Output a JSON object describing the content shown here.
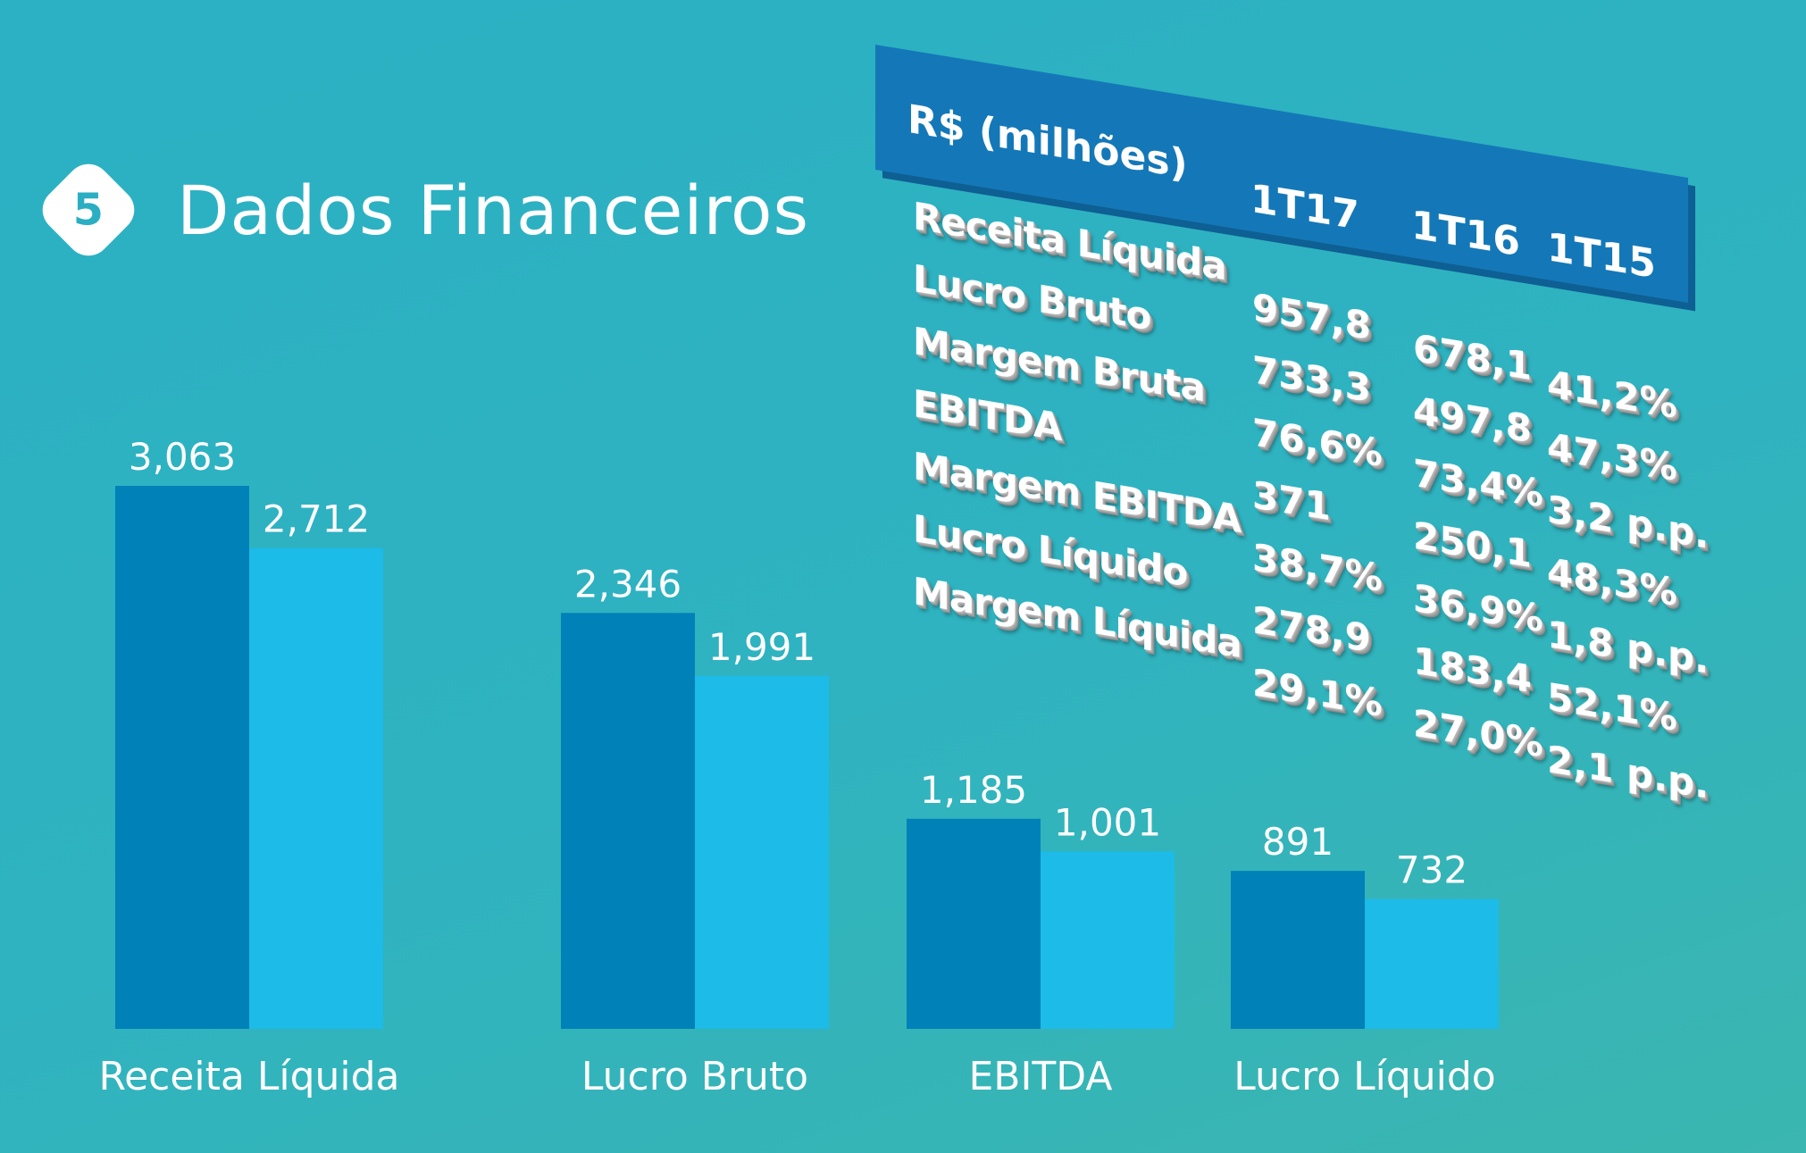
{
  "header": {
    "badge_number": "5",
    "title": "Dados Financeiros"
  },
  "chart_data": {
    "type": "bar",
    "categories": [
      "Receita Líquida",
      "Lucro Bruto",
      "EBITDA",
      "Lucro Líquido"
    ],
    "series": [
      {
        "values": [
          3063,
          2346,
          1185,
          891
        ],
        "labels": [
          "3,063",
          "2,346",
          "1,185",
          "891"
        ],
        "color": "#0081b8"
      },
      {
        "values": [
          2712,
          1991,
          1001,
          732
        ],
        "labels": [
          "2,712",
          "1,991",
          "1,001",
          "732"
        ],
        "color": "#1cbbe8"
      }
    ],
    "ylim": [
      0,
      3063
    ]
  },
  "table": {
    "header_label": "R$ (milhões)",
    "columns": [
      "1T17",
      "1T16",
      "1T15"
    ],
    "rows": [
      {
        "label": "Receita Líquida",
        "values": [
          "957,8",
          "678,1",
          "41,2%"
        ]
      },
      {
        "label": "Lucro Bruto",
        "values": [
          "733,3",
          "497,8",
          "47,3%"
        ]
      },
      {
        "label": "Margem Bruta",
        "values": [
          "76,6%",
          "73,4%",
          "3,2 p.p."
        ]
      },
      {
        "label": "EBITDA",
        "values": [
          "371",
          "250,1",
          "48,3%"
        ]
      },
      {
        "label": "Margem EBITDA",
        "values": [
          "38,7%",
          "36,9%",
          "1,8 p.p."
        ]
      },
      {
        "label": "Lucro Líquido",
        "values": [
          "278,9",
          "183,4",
          "52,1%"
        ]
      },
      {
        "label": "Margem Líquida",
        "values": [
          "29,1%",
          "27,0%",
          "2,1 p.p."
        ]
      }
    ],
    "colors": {
      "header_bg": "#1478b8",
      "text": "#ffffff"
    }
  }
}
